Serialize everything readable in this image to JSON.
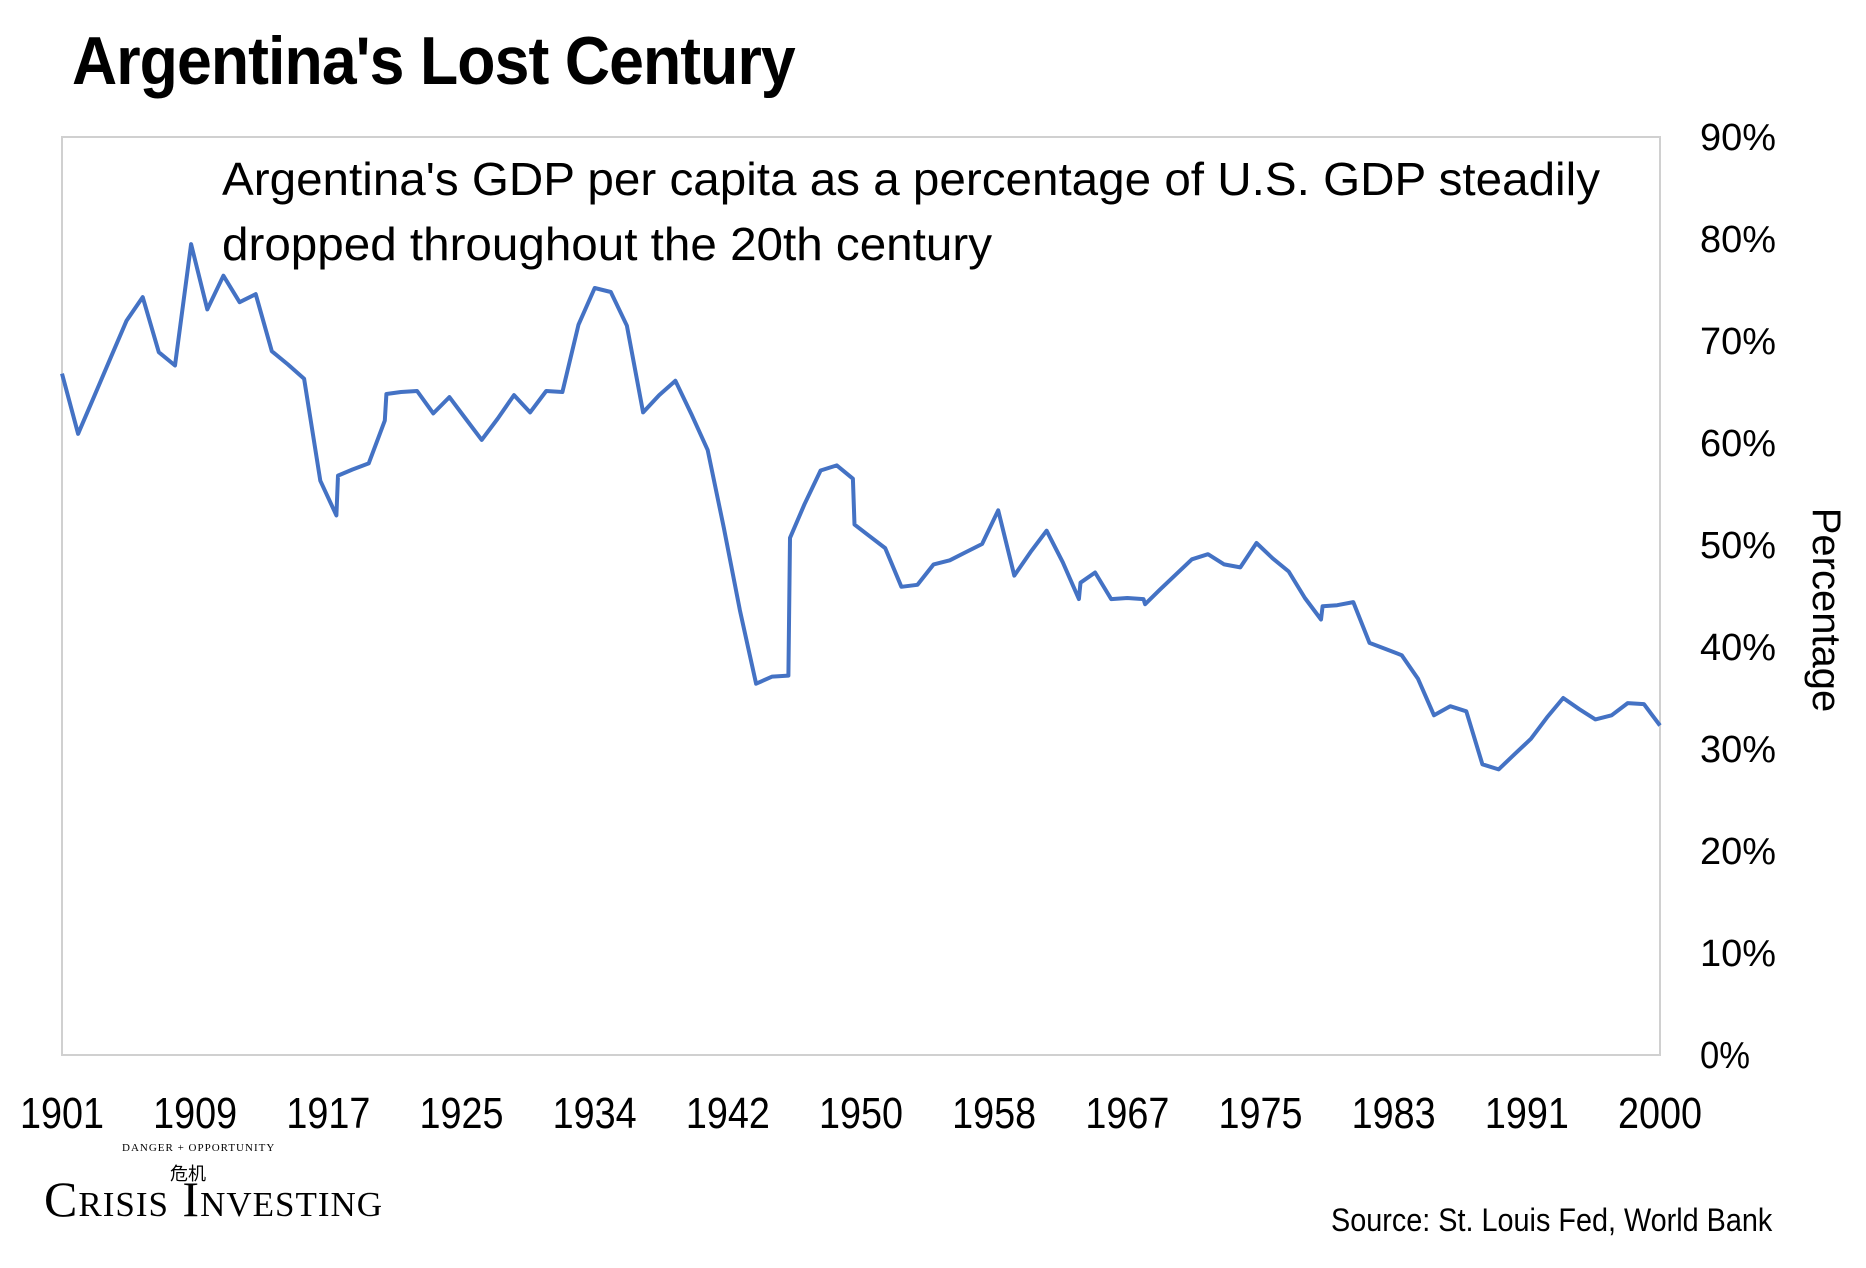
{
  "title": "Argentina's Lost Century",
  "source": "Source: St. Louis Fed, World Bank",
  "logo": {
    "tagline": "DANGER + OPPORTUNITY",
    "mark": "危机",
    "name": "Crisis Investing"
  },
  "colors": {
    "line": "#4472C4",
    "frame": "#D0D0D0",
    "text": "#000000",
    "background": "#FFFFFF"
  },
  "chart_data": {
    "type": "line",
    "annotation": "Argentina's GDP per capita as a percentage of U.S. GDP steadily dropped throughout the 20th century",
    "ylabel": "Percentage",
    "xlabel": "",
    "ylim": [
      0,
      90
    ],
    "xlim": [
      1901,
      2000
    ],
    "x_ticks": [
      1901,
      1909,
      1917,
      1925,
      1934,
      1942,
      1950,
      1958,
      1967,
      1975,
      1983,
      1991,
      2000
    ],
    "y_ticks": [
      "0%",
      "10%",
      "20%",
      "30%",
      "40%",
      "50%",
      "60%",
      "70%",
      "80%",
      "90%"
    ],
    "y_axis_position": "right",
    "grid": false,
    "legend": "none",
    "series": [
      {
        "x": [
          1901,
          1902,
          1903,
          1904,
          1905,
          1906,
          1907,
          1908,
          1909,
          1910,
          1911,
          1912,
          1913,
          1914,
          1915,
          1916,
          1917,
          1918,
          1918.1,
          1919,
          1920,
          1921,
          1921.1,
          1922,
          1923,
          1924,
          1925,
          1926,
          1927,
          1928,
          1929,
          1930,
          1931,
          1932,
          1933,
          1934,
          1935,
          1936,
          1937,
          1938,
          1939,
          1940,
          1941,
          1942,
          1943,
          1944,
          1945,
          1946,
          1946.1,
          1947,
          1948,
          1949,
          1950,
          1950.1,
          1951,
          1952,
          1953,
          1954,
          1955,
          1956,
          1957,
          1958,
          1959,
          1960,
          1961,
          1962,
          1963,
          1964,
          1964.1,
          1965,
          1966,
          1967,
          1968,
          1968.1,
          1969,
          1970,
          1971,
          1972,
          1973,
          1974,
          1975,
          1976,
          1977,
          1978,
          1979,
          1979.1,
          1980,
          1981,
          1982,
          1983,
          1984,
          1985,
          1986,
          1987,
          1988,
          1989,
          1990,
          1991,
          1992,
          1993,
          1994,
          1995,
          1996,
          1997,
          1998,
          1999,
          2000
        ],
        "values": [
          66.8,
          60.9,
          64.6,
          68.3,
          72.0,
          74.3,
          68.9,
          67.6,
          79.5,
          73.1,
          76.4,
          73.8,
          74.6,
          69.0,
          67.7,
          66.3,
          56.3,
          52.9,
          56.8,
          57.4,
          58.0,
          62.2,
          64.8,
          65.0,
          65.1,
          62.9,
          64.5,
          62.4,
          60.3,
          62.4,
          64.7,
          63.0,
          65.1,
          65.0,
          71.6,
          75.2,
          74.8,
          71.5,
          63.0,
          64.7,
          66.1,
          62.8,
          59.3,
          51.7,
          43.6,
          36.4,
          37.1,
          37.2,
          50.7,
          54.0,
          57.3,
          57.8,
          56.5,
          52.0,
          50.9,
          49.7,
          45.9,
          46.1,
          48.1,
          48.5,
          49.3,
          50.1,
          53.4,
          47.0,
          49.3,
          51.4,
          48.3,
          44.7,
          46.3,
          47.3,
          44.7,
          44.8,
          44.7,
          44.2,
          45.6,
          47.1,
          48.6,
          49.1,
          48.1,
          47.8,
          50.2,
          48.7,
          47.4,
          44.8,
          42.7,
          44.0,
          44.1,
          44.4,
          40.4,
          39.8,
          39.2,
          36.9,
          33.3,
          34.2,
          33.7,
          28.5,
          28.0,
          29.5,
          31.0,
          33.1,
          35.0,
          33.9,
          32.9,
          33.3,
          34.5,
          34.4,
          32.3
        ]
      }
    ]
  }
}
